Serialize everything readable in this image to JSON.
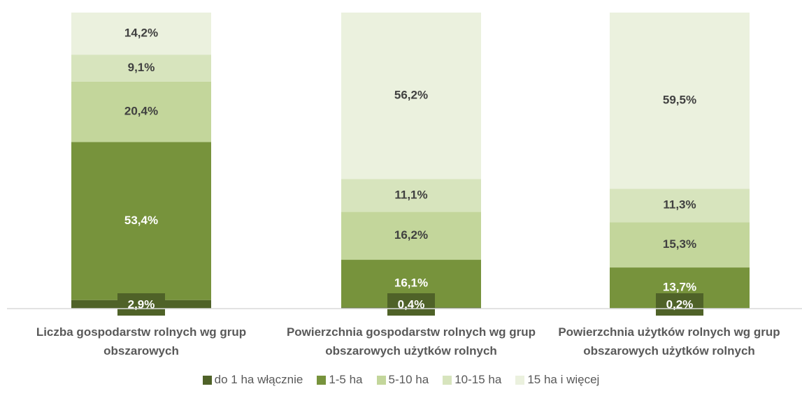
{
  "chart_data": {
    "type": "stacked-bar",
    "categories": [
      "Liczba gospodarstw rolnych wg grup obszarowych",
      "Powierzchnia gospodarstw rolnych wg grup obszarowych użytków rolnych",
      "Powierzchnia użytków rolnych wg grup obszarowych użytków rolnych"
    ],
    "ylim": [
      0,
      100
    ],
    "series": [
      {
        "name": "do 1 ha włącznie",
        "color": "#4f6228",
        "values": [
          2.9,
          0.4,
          0.2
        ],
        "value_labels": [
          "2,9%",
          "0,4%",
          "0,2%"
        ]
      },
      {
        "name": "1-5 ha",
        "color": "#77933c",
        "values": [
          53.4,
          16.1,
          13.7
        ],
        "value_labels": [
          "53,4%",
          "16,1%",
          "13,7%"
        ]
      },
      {
        "name": "5-10 ha",
        "color": "#c3d69b",
        "values": [
          20.4,
          16.2,
          15.3
        ],
        "value_labels": [
          "20,4%",
          "16,2%",
          "15,3%"
        ]
      },
      {
        "name": "10-15 ha",
        "color": "#d7e4bd",
        "values": [
          9.1,
          11.1,
          11.3
        ],
        "value_labels": [
          "9,1%",
          "11,1%",
          "11,3%"
        ]
      },
      {
        "name": "15 ha i więcej",
        "color": "#ebf1de",
        "values": [
          14.2,
          56.2,
          59.5
        ],
        "value_labels": [
          "14,2%",
          "56,2%",
          "59,5%"
        ]
      }
    ]
  }
}
